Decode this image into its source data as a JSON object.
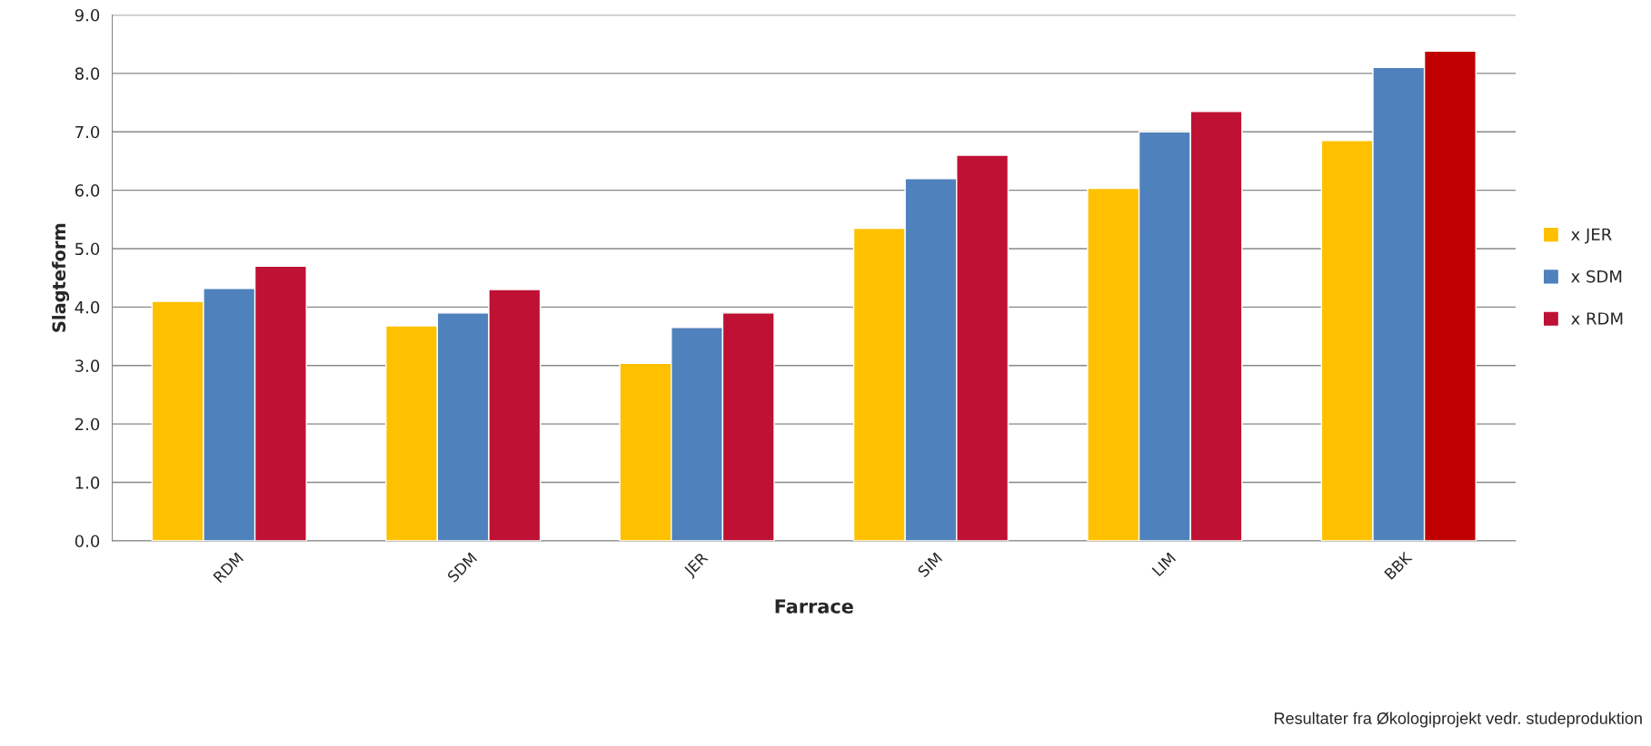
{
  "chart_data": {
    "type": "bar",
    "xlabel": "Farrace",
    "ylabel": "Slagteform",
    "categories": [
      "RDM",
      "SDM",
      "JER",
      "SIM",
      "LIM",
      "BBK"
    ],
    "series": [
      {
        "name": "x JER",
        "color": "#ffc000",
        "values": [
          4.1,
          3.68,
          3.04,
          5.35,
          6.03,
          6.85
        ]
      },
      {
        "name": "x SDM",
        "color": "#4f81bd",
        "values": [
          4.32,
          3.9,
          3.65,
          6.2,
          7.0,
          8.1
        ]
      },
      {
        "name": "x RDM",
        "color": "#be1133",
        "colors": [
          "#be1133",
          "#be1133",
          "#be1133",
          "#be1133",
          "#be1133",
          "#c00000"
        ],
        "values": [
          4.7,
          4.3,
          3.9,
          6.6,
          7.35,
          8.38
        ]
      }
    ],
    "ylim": [
      0,
      9
    ],
    "yticks": [
      {
        "value": 0,
        "label": "0.0"
      },
      {
        "value": 1,
        "label": "1.0"
      },
      {
        "value": 2,
        "label": "2.0"
      },
      {
        "value": 3,
        "label": "3.0"
      },
      {
        "value": 4,
        "label": "4.0"
      },
      {
        "value": 5,
        "label": "5.0"
      },
      {
        "value": 6,
        "label": "6.0"
      },
      {
        "value": 7,
        "label": "7.0"
      },
      {
        "value": 8,
        "label": "8.0"
      },
      {
        "value": 9,
        "label": "9.0"
      }
    ],
    "grid": "y",
    "legend": "right",
    "annotations": [
      "Resultater fra Økologiprojekt vedr. studeproduktion"
    ]
  }
}
